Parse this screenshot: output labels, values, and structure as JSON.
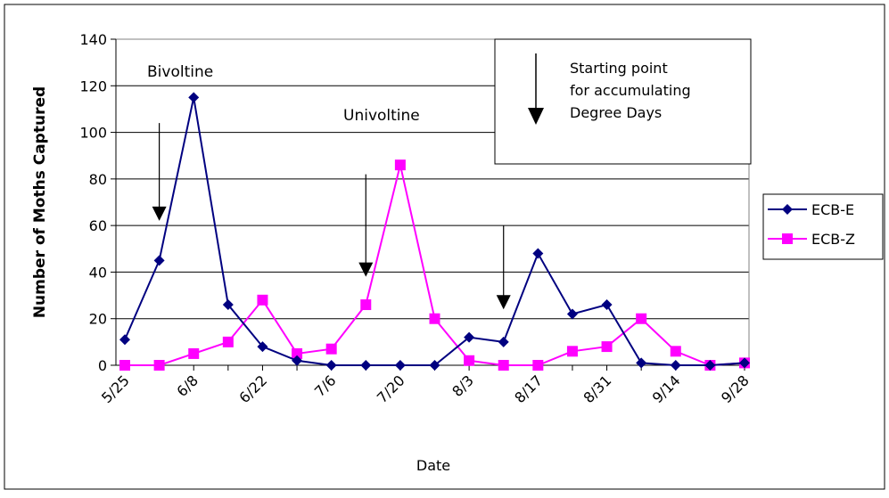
{
  "chart_data": {
    "type": "line",
    "title": "",
    "xlabel": "Date",
    "ylabel": "Number of Moths Captured",
    "ylim": [
      0,
      140
    ],
    "yticks": [
      0,
      20,
      40,
      60,
      80,
      100,
      120,
      140
    ],
    "grid": true,
    "legend_position": "right",
    "x": [
      "5/25",
      "6/1",
      "6/8",
      "6/15",
      "6/22",
      "6/29",
      "7/6",
      "7/13",
      "7/20",
      "7/27",
      "8/3",
      "8/10",
      "8/17",
      "8/24",
      "8/31",
      "9/7",
      "9/14",
      "9/21",
      "9/28"
    ],
    "xtick_labels": [
      "5/25",
      "6/8",
      "6/22",
      "7/6",
      "7/20",
      "8/3",
      "8/17",
      "8/31",
      "9/14",
      "9/28"
    ],
    "series": [
      {
        "name": "ECB-E",
        "color": "#000080",
        "marker": "diamond",
        "values": [
          11,
          45,
          115,
          26,
          8,
          2,
          0,
          0,
          0,
          0,
          12,
          10,
          48,
          22,
          26,
          1,
          0,
          0,
          1
        ]
      },
      {
        "name": "ECB-Z",
        "color": "#ff00ff",
        "marker": "square",
        "values": [
          0,
          0,
          5,
          10,
          28,
          5,
          7,
          26,
          86,
          20,
          2,
          0,
          0,
          6,
          8,
          20,
          6,
          0,
          1
        ]
      }
    ],
    "annotations": {
      "bivoltine": "Bivoltine",
      "univoltine": "Univoltine",
      "arrow_key": [
        "Starting point",
        "for accumulating",
        "Degree Days"
      ]
    },
    "arrows": [
      {
        "x": "6/1",
        "from_y": 104,
        "to_y": 62
      },
      {
        "x": "7/13",
        "from_y": 82,
        "to_y": 38
      },
      {
        "x": "8/10",
        "from_y": 60,
        "to_y": 24
      }
    ]
  }
}
